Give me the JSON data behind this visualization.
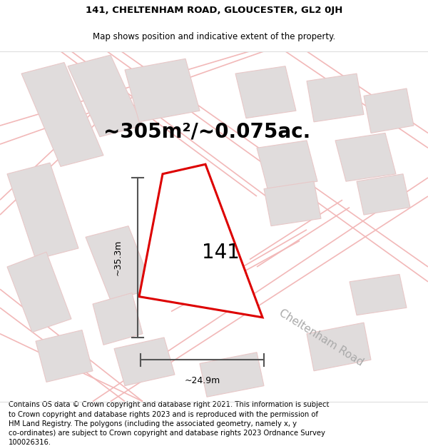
{
  "title_line1": "141, CHELTENHAM ROAD, GLOUCESTER, GL2 0JH",
  "title_line2": "Map shows position and indicative extent of the property.",
  "area_text": "~305m²/~0.075ac.",
  "label_141": "141",
  "dim_width": "~24.9m",
  "dim_height": "~35.3m",
  "road_label": "Cheltenham Road",
  "footer_text": "Contains OS data © Crown copyright and database right 2021. This information is subject to Crown copyright and database rights 2023 and is reproduced with the permission of HM Land Registry. The polygons (including the associated geometry, namely x, y co-ordinates) are subject to Crown copyright and database rights 2023 Ordnance Survey 100026316.",
  "map_bg": "#f5f3f3",
  "plot_color": "#dd0000",
  "road_line_color": "#f2b8b8",
  "building_fill": "#e0dcdc",
  "building_edge": "#e8c8c8",
  "dim_line_color": "#555555",
  "title_fontsize": 9.5,
  "subtitle_fontsize": 8.5,
  "area_fontsize": 20,
  "label_fontsize": 20,
  "dim_fontsize": 9,
  "road_fontsize": 11,
  "footer_fontsize": 7.2
}
